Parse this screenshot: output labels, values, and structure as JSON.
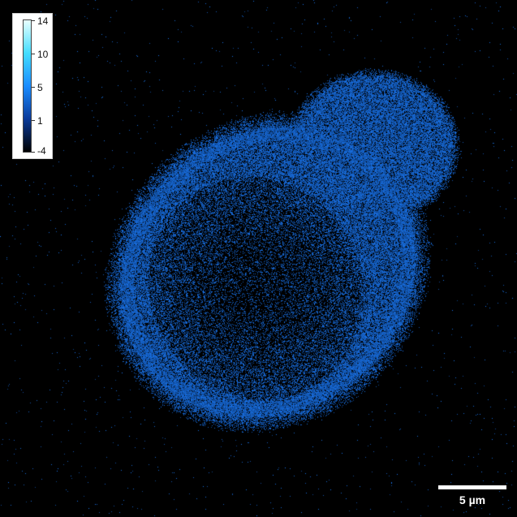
{
  "colorbar": {
    "ticks": [
      "14",
      "10",
      "5",
      "1",
      "-4"
    ],
    "colors": [
      "#e8ffff",
      "#44ddff",
      "#1a8cff",
      "#0a3a9a",
      "#000000"
    ]
  },
  "scale_bar": {
    "label": "5 µm"
  },
  "image": {
    "cell_color": "#1f78e6",
    "background": "#000000"
  }
}
